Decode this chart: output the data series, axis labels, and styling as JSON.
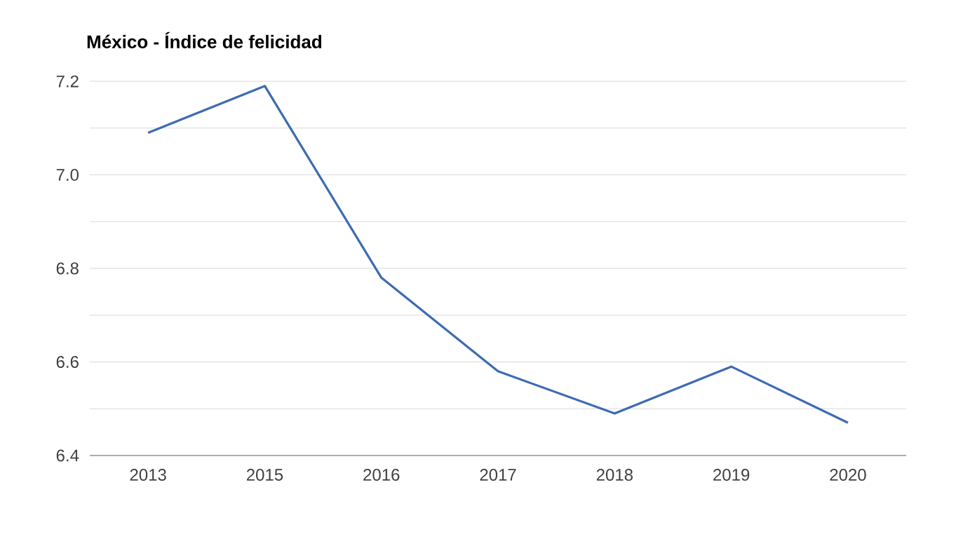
{
  "chart_data": {
    "type": "line",
    "title": "México - Índice de felicidad",
    "categories": [
      "2013",
      "2015",
      "2016",
      "2017",
      "2018",
      "2019",
      "2020"
    ],
    "series": [
      {
        "color": "#3d6bb3",
        "values": [
          7.09,
          7.19,
          6.78,
          6.58,
          6.49,
          6.59,
          6.47
        ]
      }
    ],
    "ylim": [
      6.4,
      7.2
    ],
    "yticks": [
      6.4,
      {
        "value": 6.5,
        "label": null
      },
      6.6,
      {
        "value": 6.7,
        "label": null
      },
      6.8,
      {
        "value": 6.9,
        "label": null
      },
      {
        "value": 7.0,
        "label": "7.0"
      },
      {
        "value": 7.1,
        "label": null
      },
      7.2
    ],
    "grid": "y",
    "marker": "none",
    "line_style": "solid"
  }
}
